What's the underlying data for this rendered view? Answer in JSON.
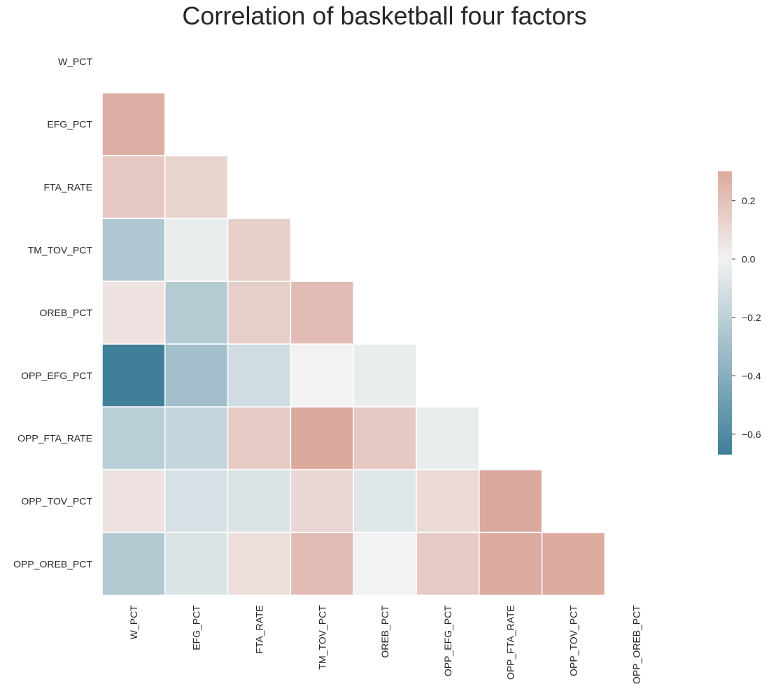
{
  "chart_data": {
    "type": "heatmap",
    "title": "Correlation of basketball four factors",
    "mask": "upper-triangle-and-diagonal",
    "labels": [
      "W_PCT",
      "EFG_PCT",
      "FTA_RATE",
      "TM_TOV_PCT",
      "OREB_PCT",
      "OPP_EFG_PCT",
      "OPP_FTA_RATE",
      "OPP_TOV_PCT",
      "OPP_OREB_PCT"
    ],
    "matrix": [
      [
        null,
        null,
        null,
        null,
        null,
        null,
        null,
        null,
        null
      ],
      [
        0.28,
        null,
        null,
        null,
        null,
        null,
        null,
        null,
        null
      ],
      [
        0.17,
        0.12,
        null,
        null,
        null,
        null,
        null,
        null,
        null
      ],
      [
        -0.25,
        -0.03,
        0.15,
        null,
        null,
        null,
        null,
        null,
        null
      ],
      [
        0.06,
        -0.23,
        0.15,
        0.22,
        null,
        null,
        null,
        null,
        null
      ],
      [
        -0.67,
        -0.3,
        -0.13,
        0.0,
        -0.03,
        null,
        null,
        null,
        null
      ],
      [
        -0.21,
        -0.17,
        0.16,
        0.3,
        0.17,
        -0.03,
        null,
        null,
        null
      ],
      [
        0.06,
        -0.1,
        -0.09,
        0.11,
        -0.07,
        0.1,
        0.3,
        null,
        null
      ],
      [
        -0.24,
        -0.09,
        0.08,
        0.22,
        0.0,
        0.16,
        0.29,
        0.29,
        null
      ]
    ],
    "colorbar": {
      "vmin": -0.67,
      "vmax": 0.3,
      "ticks": [
        0.2,
        0.0,
        -0.2,
        -0.4,
        -0.6
      ],
      "tick_labels": [
        "0.2",
        "0.0",
        "−0.2",
        "−0.4",
        "−0.6"
      ]
    },
    "colors": {
      "low": "#3f7f9a",
      "mid": "#f2f2f2",
      "high": "#dca99d"
    }
  }
}
